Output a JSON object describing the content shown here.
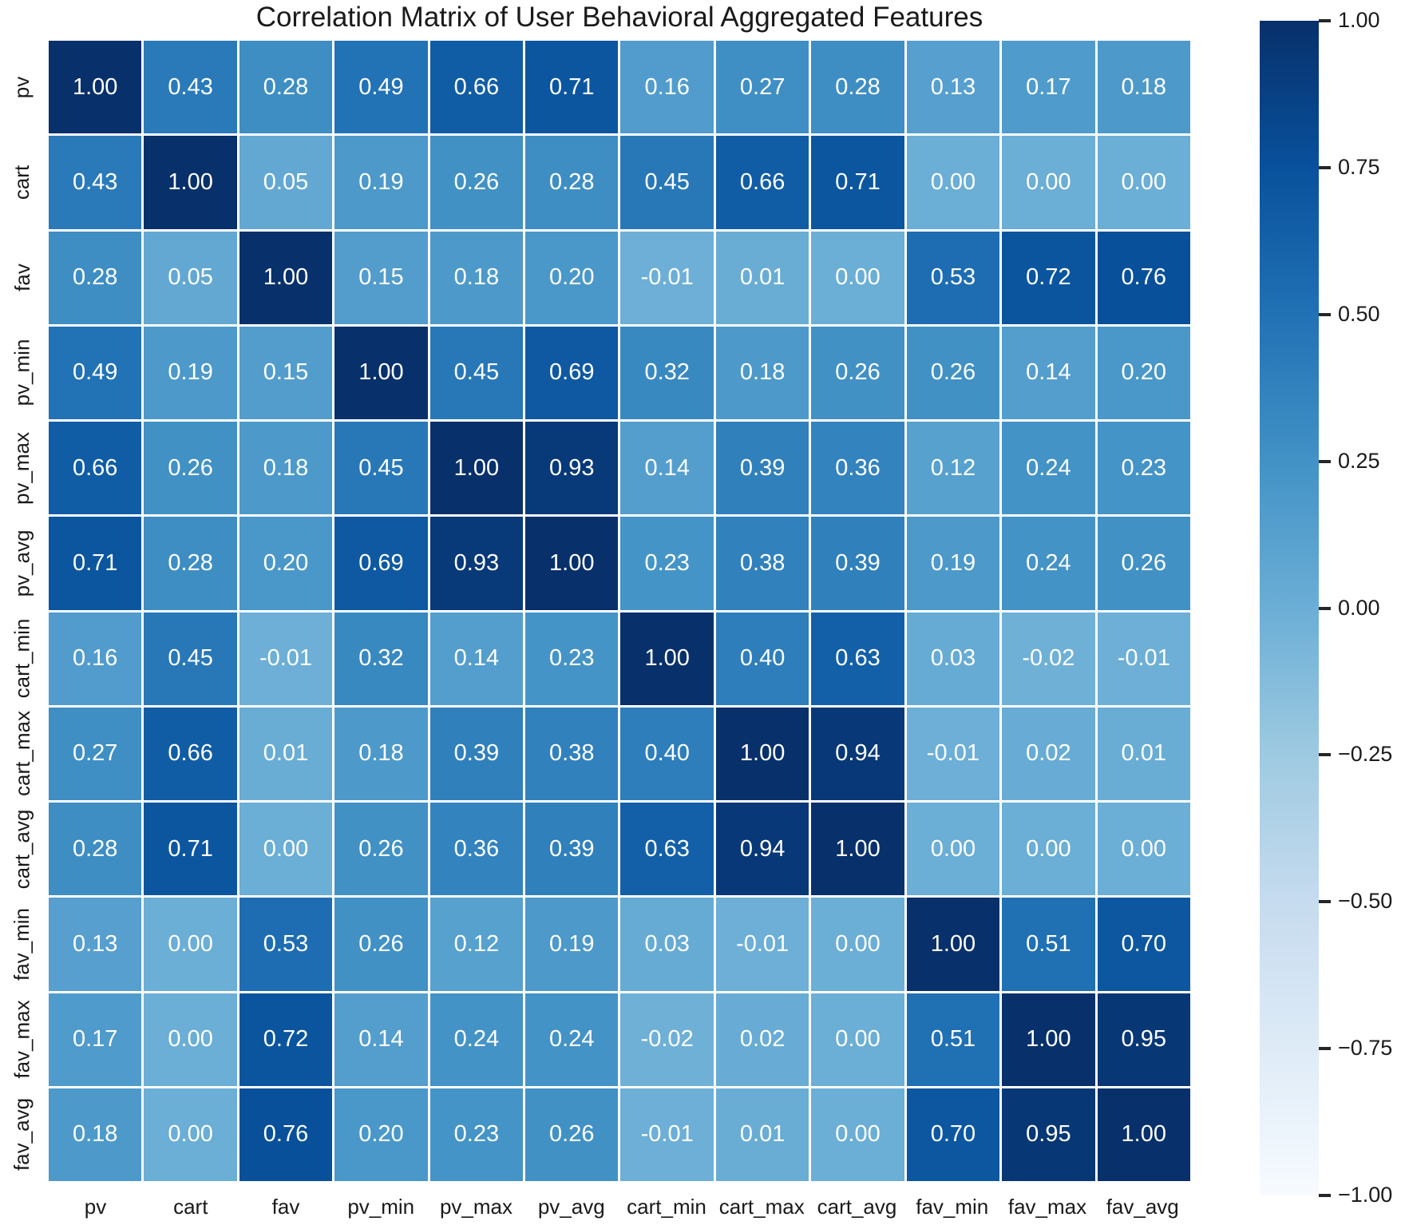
{
  "chart_data": {
    "type": "heatmap",
    "title": "Correlation Matrix of User Behavioral Aggregated Features",
    "categories": [
      "pv",
      "cart",
      "fav",
      "pv_min",
      "pv_max",
      "pv_avg",
      "cart_min",
      "cart_max",
      "cart_avg",
      "fav_min",
      "fav_max",
      "fav_avg"
    ],
    "matrix": [
      [
        1.0,
        0.43,
        0.28,
        0.49,
        0.66,
        0.71,
        0.16,
        0.27,
        0.28,
        0.13,
        0.17,
        0.18
      ],
      [
        0.43,
        1.0,
        0.05,
        0.19,
        0.26,
        0.28,
        0.45,
        0.66,
        0.71,
        0.0,
        0.0,
        0.0
      ],
      [
        0.28,
        0.05,
        1.0,
        0.15,
        0.18,
        0.2,
        -0.01,
        0.01,
        0.0,
        0.53,
        0.72,
        0.76
      ],
      [
        0.49,
        0.19,
        0.15,
        1.0,
        0.45,
        0.69,
        0.32,
        0.18,
        0.26,
        0.26,
        0.14,
        0.2
      ],
      [
        0.66,
        0.26,
        0.18,
        0.45,
        1.0,
        0.93,
        0.14,
        0.39,
        0.36,
        0.12,
        0.24,
        0.23
      ],
      [
        0.71,
        0.28,
        0.2,
        0.69,
        0.93,
        1.0,
        0.23,
        0.38,
        0.39,
        0.19,
        0.24,
        0.26
      ],
      [
        0.16,
        0.45,
        -0.01,
        0.32,
        0.14,
        0.23,
        1.0,
        0.4,
        0.63,
        0.03,
        -0.02,
        -0.01
      ],
      [
        0.27,
        0.66,
        0.01,
        0.18,
        0.39,
        0.38,
        0.4,
        1.0,
        0.94,
        -0.01,
        0.02,
        0.01
      ],
      [
        0.28,
        0.71,
        0.0,
        0.26,
        0.36,
        0.39,
        0.63,
        0.94,
        1.0,
        0.0,
        0.0,
        0.0
      ],
      [
        0.13,
        0.0,
        0.53,
        0.26,
        0.12,
        0.19,
        0.03,
        -0.01,
        0.0,
        1.0,
        0.51,
        0.7
      ],
      [
        0.17,
        0.0,
        0.72,
        0.14,
        0.24,
        0.24,
        -0.02,
        0.02,
        0.0,
        0.51,
        1.0,
        0.95
      ],
      [
        0.18,
        0.0,
        0.76,
        0.2,
        0.23,
        0.26,
        -0.01,
        0.01,
        0.0,
        0.7,
        0.95,
        1.0
      ]
    ],
    "vmin": -1,
    "vmax": 1,
    "colormap": "Blues",
    "colormap_colors": [
      "#f7fbff",
      "#deebf7",
      "#c6dbef",
      "#9ecae1",
      "#6baed6",
      "#4292c6",
      "#2171b5",
      "#08519c",
      "#08306b"
    ],
    "annotation_text_color": "#ffffff",
    "grid_line_color": "#ffffff",
    "colorbar_ticks": [
      "1.00",
      "0.75",
      "0.50",
      "0.25",
      "0.00",
      "−0.25",
      "−0.50",
      "−0.75",
      "−1.00"
    ],
    "legend_position": "right",
    "value_format": "0.00"
  }
}
